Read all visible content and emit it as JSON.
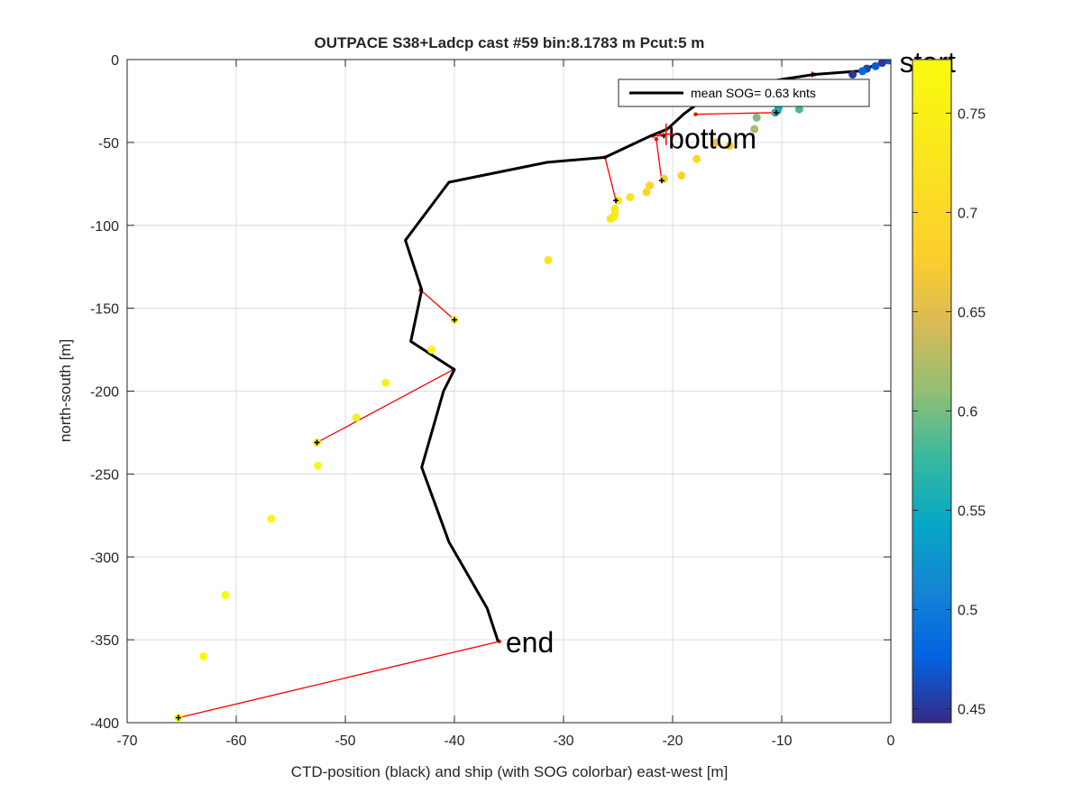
{
  "chart_data": {
    "type": "scatter",
    "title": "OUTPACE S38+Ladcp cast #59 bin:8.1783 m  Pcut:5 m",
    "xlabel": "CTD-position (black) and ship (with SOG colorbar) east-west [m]",
    "ylabel": "north-south [m]",
    "xlim": [
      -70,
      0
    ],
    "ylim": [
      -400,
      0
    ],
    "xticks": [
      -70,
      -60,
      -50,
      -40,
      -30,
      -20,
      -10,
      0
    ],
    "yticks": [
      -400,
      -350,
      -300,
      -250,
      -200,
      -150,
      -100,
      -50,
      0
    ],
    "xtick_labels": [
      "-70",
      "-60",
      "-50",
      "-40",
      "-30",
      "-20",
      "-10",
      "0"
    ],
    "ytick_labels": [
      "-400",
      "-350",
      "-300",
      "-250",
      "-200",
      "-150",
      "-100",
      "-50",
      "0"
    ],
    "grid": true,
    "legend": {
      "placement": "top-right",
      "entries": [
        "mean SOG=  0.63 knts"
      ]
    },
    "annotations": [
      {
        "text": "start",
        "x": 0.8,
        "y": -1
      },
      {
        "text": "bottom",
        "x": -20.4,
        "y": -47
      },
      {
        "text": "end",
        "x": -35.3,
        "y": -351
      }
    ],
    "ctd_track": {
      "color": "#000000",
      "x": [
        0,
        -3,
        -7,
        -10,
        -17,
        -18,
        -19,
        -20.5,
        -22,
        -26.2,
        -31.5,
        -40.5,
        -44.5,
        -43,
        -44,
        -40,
        -41,
        -43,
        -40.5,
        -37,
        -36
      ],
      "y": [
        0,
        -7,
        -9,
        -12,
        -20,
        -28,
        -33,
        -42,
        -46,
        -59,
        -62,
        -74,
        -109,
        -139,
        -170,
        -187,
        -200,
        -246,
        -291,
        -331,
        -351
      ]
    },
    "ship_points": {
      "colorscale": "parula",
      "x": [
        -0.2,
        -0.8,
        -1.4,
        -2.2,
        -2.6,
        -3.5,
        -8.4,
        -10.6,
        -10.3,
        -10.4,
        -12.3,
        -12.5,
        -14.8,
        -16.0,
        -17.8,
        -19.2,
        -20.8,
        -22.1,
        -22.4,
        -23.9,
        -25.0,
        -25.3,
        -25.3,
        -25.4,
        -25.7,
        -31.4,
        -40.0,
        -42.1,
        -46.3,
        -49.0,
        -52.6,
        -52.5,
        -56.8,
        -61.0,
        -63.0,
        -65.3
      ],
      "y": [
        -0.5,
        -2,
        -4,
        -5.5,
        -7,
        -9,
        -30,
        -32,
        -29,
        -31,
        -35,
        -42,
        -52,
        -50,
        -60,
        -70,
        -72,
        -76,
        -80,
        -83,
        -85,
        -90,
        -93,
        -95,
        -96,
        -121,
        -157,
        -175,
        -195,
        -216,
        -231,
        -245,
        -277,
        -323,
        -360,
        -397
      ],
      "sog": [
        0.47,
        0.45,
        0.47,
        0.46,
        0.48,
        0.45,
        0.58,
        0.57,
        0.55,
        0.56,
        0.6,
        0.62,
        0.68,
        0.66,
        0.7,
        0.69,
        0.67,
        0.69,
        0.7,
        0.72,
        0.74,
        0.73,
        0.74,
        0.74,
        0.73,
        0.72,
        0.76,
        0.76,
        0.75,
        0.75,
        0.76,
        0.77,
        0.76,
        0.77,
        0.77,
        0.77
      ]
    },
    "link_lines": {
      "color": "#ff0000",
      "pairs": [
        {
          "ctd": [
            -17.9,
            -33
          ],
          "ship": [
            -10.5,
            -32
          ]
        },
        {
          "ctd": [
            -21.8,
            -46
          ],
          "ship": [
            -20.8,
            -46
          ]
        },
        {
          "ctd": [
            -21.5,
            -48
          ],
          "ship": [
            -21.0,
            -73
          ]
        },
        {
          "ctd": [
            -26.2,
            -59
          ],
          "ship": [
            -25.2,
            -85
          ]
        },
        {
          "ctd": [
            -43.1,
            -139
          ],
          "ship": [
            -40.0,
            -157
          ]
        },
        {
          "ctd": [
            -40.1,
            -187
          ],
          "ship": [
            -52.6,
            -231
          ]
        },
        {
          "ctd": [
            -35.9,
            -351
          ],
          "ship": [
            -65.3,
            -397
          ]
        },
        {
          "ctd": [
            -7.0,
            -9
          ],
          "ship": [
            -7.2,
            -9
          ]
        }
      ]
    },
    "colorbar": {
      "range": [
        0.443,
        0.777
      ],
      "ticks": [
        0.45,
        0.5,
        0.55,
        0.6,
        0.65,
        0.7,
        0.75
      ],
      "tick_labels": [
        "0.45",
        "0.5",
        "0.55",
        "0.6",
        "0.65",
        "0.7",
        "0.75"
      ]
    }
  }
}
